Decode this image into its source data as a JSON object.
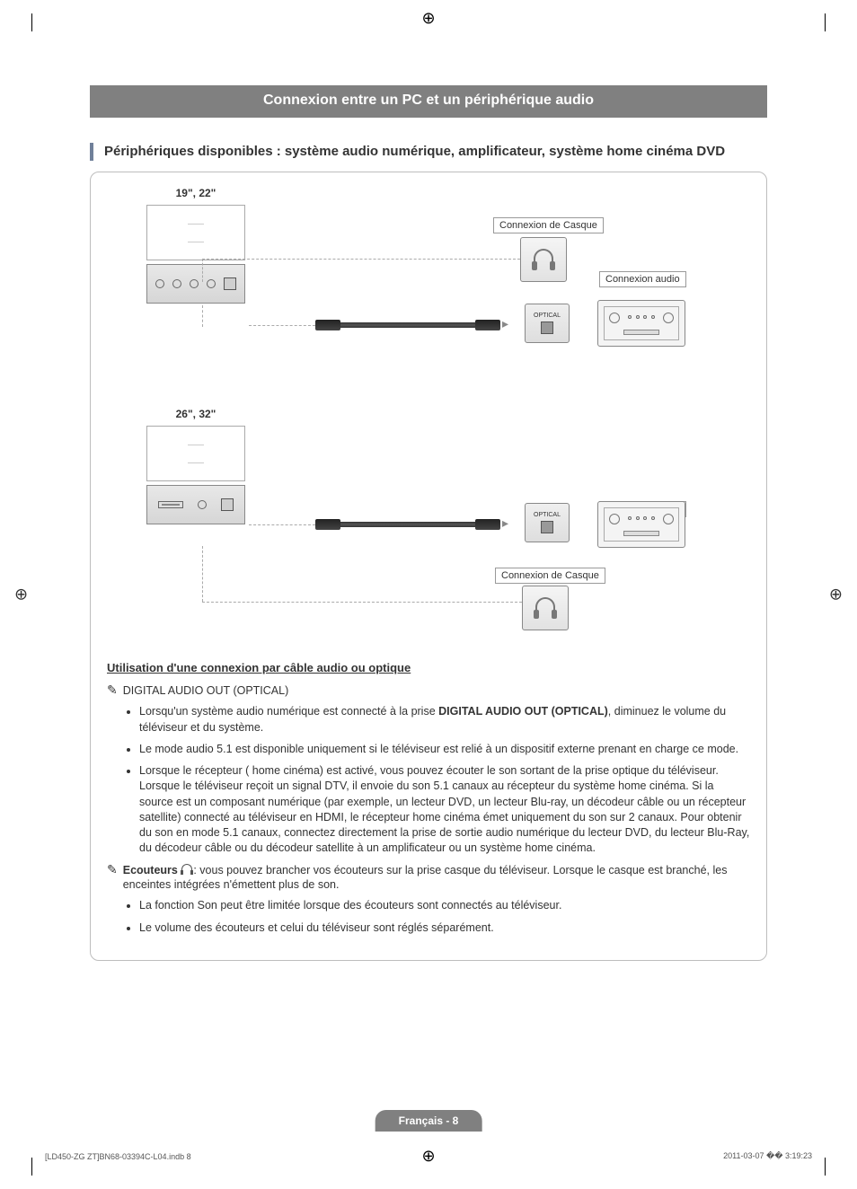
{
  "banner_title": "Connexion entre un PC et un périphérique audio",
  "section_title": "Périphériques disponibles : système audio numérique, amplificateur, système home cinéma DVD",
  "diagram": {
    "tv1_label": "19\", 22\"",
    "tv2_label": "26\", 32\"",
    "headphone_label_1": "Connexion de Casque",
    "headphone_label_2": "Connexion de Casque",
    "audio_label_1": "Connexion audio",
    "audio_label_2": "Connexion audio",
    "optical_text": "OPTICAL"
  },
  "sub_heading": "Utilisation d'une connexion par câble audio ou optique",
  "note_icon": "✎",
  "audio_out_label": "DIGITAL AUDIO OUT (OPTICAL)",
  "bullets_a": [
    "Lorsqu'un système audio numérique est connecté à la prise DIGITAL AUDIO OUT (OPTICAL), diminuez le volume du téléviseur et du système.",
    "Le mode audio 5.1 est disponible uniquement si le téléviseur est relié à un dispositif externe prenant en charge ce mode.",
    "Lorsque le récepteur ( home cinéma) est activé, vous pouvez écouter le son sortant de la prise optique du téléviseur. Lorsque le téléviseur reçoit un signal DTV, il envoie du son 5.1 canaux au récepteur du système home cinéma.  Si la source est un composant numérique (par exemple, un lecteur DVD, un lecteur Blu-ray, un décodeur câble ou un récepteur satellite) connecté au téléviseur en HDMI, le récepteur home cinéma émet uniquement du son sur 2 canaux.  Pour obtenir du son en mode 5.1 canaux, connectez directement la prise de sortie audio numérique du lecteur DVD, du lecteur Blu-Ray, du décodeur câble ou du décodeur satellite à un amplificateur ou un système home cinéma."
  ],
  "ecouteurs_label": "Ecouteurs",
  "ecouteurs_text": ": vous pouvez brancher vos écouteurs sur la prise casque du téléviseur.  Lorsque le casque est branché, les enceintes intégrées n'émettent plus de son.",
  "bullets_b": [
    "La fonction Son peut être limitée lorsque des écouteurs sont connectés au téléviseur.",
    "Le volume des écouteurs et celui du téléviseur sont réglés séparément."
  ],
  "page_number_label": "Français - 8",
  "doc_footer_left": "[LD450-ZG ZT]BN68-03394C-L04.indb   8",
  "doc_footer_right": "2011-03-07   �� 3:19:23",
  "colors": {
    "banner_bg": "#808080",
    "accent": "#70809a",
    "border": "#bdbdbd",
    "text": "#333333"
  }
}
